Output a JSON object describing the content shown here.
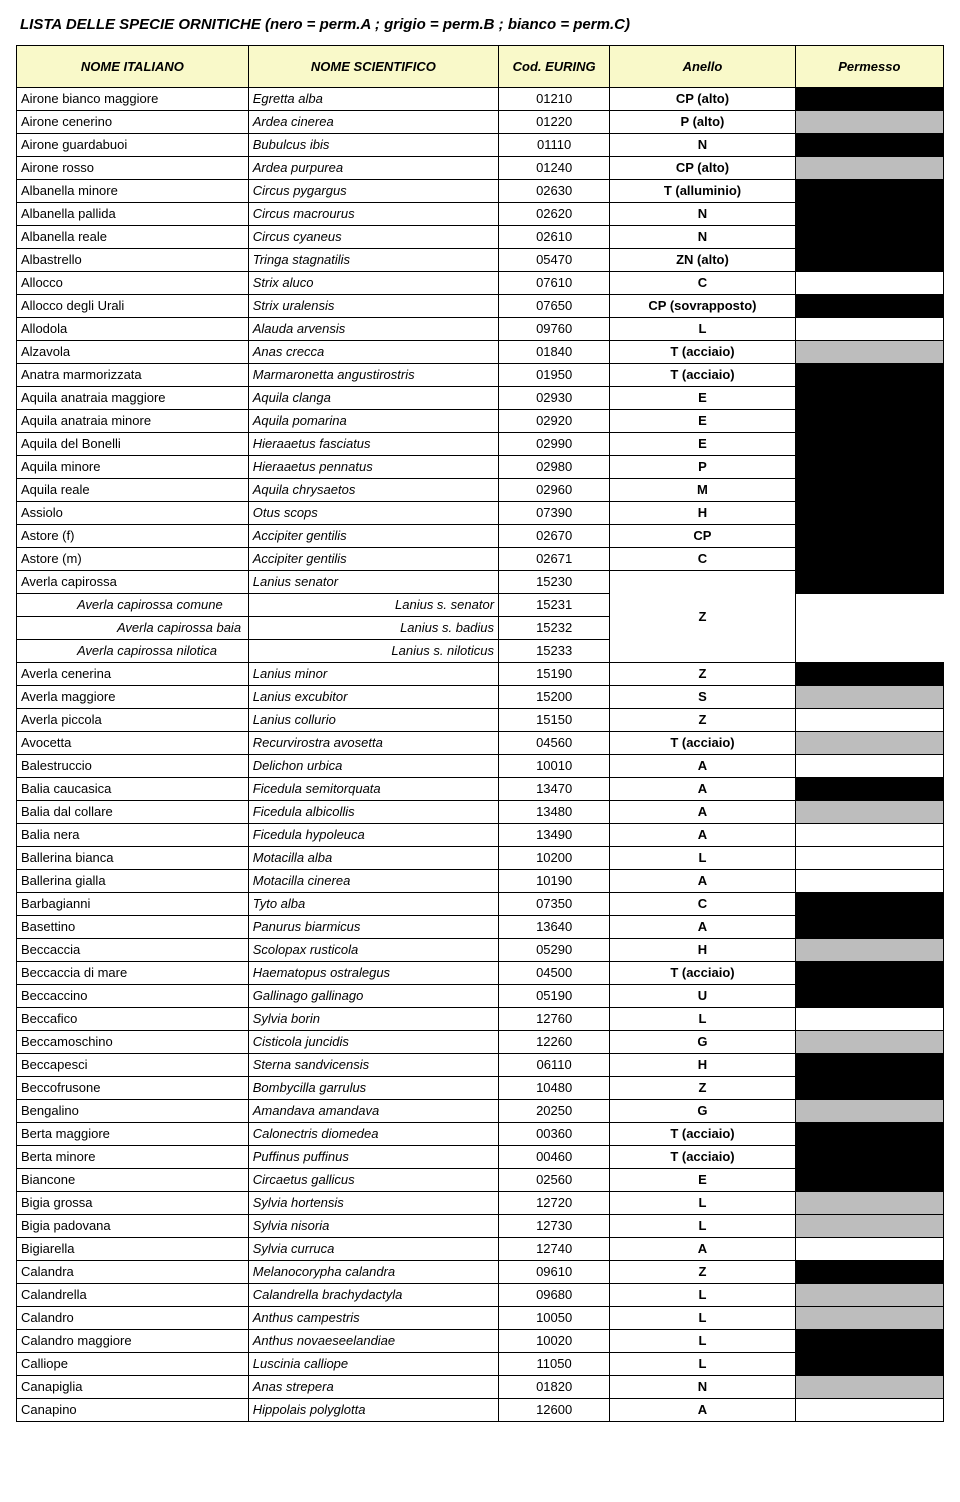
{
  "title": "LISTA DELLE SPECIE ORNITICHE  (nero = perm.A ; grigio = perm.B ; bianco = perm.C)",
  "headers": {
    "c1": "NOME ITALIANO",
    "c2": "NOME SCIENTIFICO",
    "c3": "Cod. EURING",
    "c4": "Anello",
    "c5": "Permesso"
  },
  "colors": {
    "black": "#000000",
    "gray": "#bdbdbd",
    "white": "#ffffff",
    "header_bg": "#f9f9c9"
  },
  "rows": [
    {
      "it": "Airone bianco maggiore",
      "sci": "Egretta alba",
      "cod": "01210",
      "an": "CP  (alto)",
      "perm": "black"
    },
    {
      "it": "Airone cenerino",
      "sci": "Ardea cinerea",
      "cod": "01220",
      "an": "P (alto)",
      "perm": "gray"
    },
    {
      "it": "Airone guardabuoi",
      "sci": "Bubulcus ibis",
      "cod": "01110",
      "an": "N",
      "perm": "black"
    },
    {
      "it": "Airone rosso",
      "sci": "Ardea purpurea",
      "cod": "01240",
      "an": "CP  (alto)",
      "perm": "gray"
    },
    {
      "it": "Albanella minore",
      "sci": "Circus pygargus",
      "cod": "02630",
      "an": "T (alluminio)",
      "perm": "black",
      "rowspan": 4
    },
    {
      "it": "Albanella pallida",
      "sci": "Circus macrourus",
      "cod": "02620",
      "an": "N"
    },
    {
      "it": "Albanella reale",
      "sci": "Circus cyaneus",
      "cod": "02610",
      "an": "N"
    },
    {
      "it": "Albastrello",
      "sci": "Tringa stagnatilis",
      "cod": "05470",
      "an": "ZN (alto)"
    },
    {
      "it": "Allocco",
      "sci": "Strix aluco",
      "cod": "07610",
      "an": "C",
      "perm": "white"
    },
    {
      "it": "Allocco degli Urali",
      "sci": "Strix uralensis",
      "cod": "07650",
      "an": "CP (sovrapposto)",
      "perm": "black"
    },
    {
      "it": "Allodola",
      "sci": "Alauda arvensis",
      "cod": "09760",
      "an": "L",
      "perm": "white"
    },
    {
      "it": "Alzavola",
      "sci": "Anas crecca",
      "cod": "01840",
      "an": "T (acciaio)",
      "perm": "gray"
    },
    {
      "it": "Anatra marmorizzata",
      "sci": "Marmaronetta angustirostris",
      "cod": "01950",
      "an": "T (acciaio)",
      "perm": "black",
      "rowspan": 10
    },
    {
      "it": "Aquila anatraia maggiore",
      "sci": "Aquila clanga",
      "cod": "02930",
      "an": "E"
    },
    {
      "it": "Aquila anatraia minore",
      "sci": "Aquila pomarina",
      "cod": "02920",
      "an": "E"
    },
    {
      "it": "Aquila del Bonelli",
      "sci": "Hieraaetus fasciatus",
      "cod": "02990",
      "an": "E"
    },
    {
      "it": "Aquila minore",
      "sci": "Hieraaetus pennatus",
      "cod": "02980",
      "an": "P"
    },
    {
      "it": "Aquila reale",
      "sci": "Aquila chrysaetos",
      "cod": "02960",
      "an": "M"
    },
    {
      "it": "Assiolo",
      "sci": "Otus scops",
      "cod": "07390",
      "an": "H"
    },
    {
      "it": "Astore     (f)",
      "sci": "Accipiter gentilis",
      "cod": "02670",
      "an": "CP"
    },
    {
      "it": "Astore     (m)",
      "sci": "Accipiter gentilis",
      "cod": "02671",
      "an": "C"
    },
    {
      "it": "Averla capirossa",
      "sci": "Lanius senator",
      "cod": "15230",
      "an": "",
      "an_rowspan": 4,
      "an_val": "Z"
    },
    {
      "it": "Averla capirossa comune",
      "sci": "Lanius s. senator",
      "cod": "15231",
      "indent": "indent1",
      "sci_right": true
    },
    {
      "it": "Averla capirossa baia",
      "sci": "Lanius s. badius",
      "cod": "15232",
      "indent": "indent2",
      "sci_right": true
    },
    {
      "it": "Averla capirossa nilotica",
      "sci": "Lanius s. niloticus",
      "cod": "15233",
      "indent": "indent1",
      "sci_right": true
    },
    {
      "it": "Averla cenerina",
      "sci": "Lanius minor",
      "cod": "15190",
      "an": "Z",
      "perm": "black"
    },
    {
      "it": "Averla maggiore",
      "sci": "Lanius excubitor",
      "cod": "15200",
      "an": "S",
      "perm": "gray"
    },
    {
      "it": "Averla piccola",
      "sci": "Lanius collurio",
      "cod": "15150",
      "an": "Z",
      "perm": "white"
    },
    {
      "it": "Avocetta",
      "sci": "Recurvirostra avosetta",
      "cod": "04560",
      "an": "T (acciaio)",
      "perm": "gray"
    },
    {
      "it": "Balestruccio",
      "sci": "Delichon urbica",
      "cod": "10010",
      "an": "A",
      "perm": "white"
    },
    {
      "it": "Balia caucasica",
      "sci": "Ficedula semitorquata",
      "cod": "13470",
      "an": "A",
      "perm": "black"
    },
    {
      "it": "Balia dal collare",
      "sci": "Ficedula albicollis",
      "cod": "13480",
      "an": "A",
      "perm": "gray"
    },
    {
      "it": "Balia nera",
      "sci": "Ficedula hypoleuca",
      "cod": "13490",
      "an": "A",
      "perm": "white"
    },
    {
      "it": "Ballerina bianca",
      "sci": "Motacilla alba",
      "cod": "10200",
      "an": "L",
      "perm": "white"
    },
    {
      "it": "Ballerina gialla",
      "sci": "Motacilla cinerea",
      "cod": "10190",
      "an": "A",
      "perm": "white"
    },
    {
      "it": "Barbagianni",
      "sci": "Tyto alba",
      "cod": "07350",
      "an": "C",
      "perm": "black",
      "rowspan": 2
    },
    {
      "it": "Basettino",
      "sci": "Panurus biarmicus",
      "cod": "13640",
      "an": "A"
    },
    {
      "it": "Beccaccia",
      "sci": "Scolopax rusticola",
      "cod": "05290",
      "an": "H",
      "perm": "gray"
    },
    {
      "it": "Beccaccia di mare",
      "sci": "Haematopus ostralegus",
      "cod": "04500",
      "an": "T (acciaio)",
      "perm": "black",
      "rowspan": 2
    },
    {
      "it": "Beccaccino",
      "sci": "Gallinago gallinago",
      "cod": "05190",
      "an": "U"
    },
    {
      "it": "Beccafico",
      "sci": "Sylvia borin",
      "cod": "12760",
      "an": "L",
      "perm": "white"
    },
    {
      "it": "Beccamoschino",
      "sci": "Cisticola juncidis",
      "cod": "12260",
      "an": "G",
      "perm": "gray"
    },
    {
      "it": "Beccapesci",
      "sci": "Sterna sandvicensis",
      "cod": "06110",
      "an": "H",
      "perm": "black"
    },
    {
      "it": "Beccofrusone",
      "sci": "Bombycilla garrulus",
      "cod": "10480",
      "an": "Z",
      "perm": "black"
    },
    {
      "it": "Bengalino",
      "sci": "Amandava amandava",
      "cod": "20250",
      "an": "G",
      "perm": "gray"
    },
    {
      "it": "Berta maggiore",
      "sci": "Calonectris diomedea",
      "cod": "00360",
      "an": "T (acciaio)",
      "perm": "black",
      "rowspan": 3
    },
    {
      "it": "Berta minore",
      "sci": "Puffinus puffinus",
      "cod": "00460",
      "an": "T (acciaio)"
    },
    {
      "it": "Biancone",
      "sci": "Circaetus gallicus",
      "cod": "02560",
      "an": "E"
    },
    {
      "it": "Bigia grossa",
      "sci": "Sylvia hortensis",
      "cod": "12720",
      "an": "L",
      "perm": "gray"
    },
    {
      "it": "Bigia padovana",
      "sci": "Sylvia nisoria",
      "cod": "12730",
      "an": "L",
      "perm": "gray"
    },
    {
      "it": "Bigiarella",
      "sci": "Sylvia curruca",
      "cod": "12740",
      "an": "A",
      "perm": "white"
    },
    {
      "it": "Calandra",
      "sci": "Melanocorypha calandra",
      "cod": "09610",
      "an": "Z",
      "perm": "black"
    },
    {
      "it": "Calandrella",
      "sci": "Calandrella brachydactyla",
      "cod": "09680",
      "an": "L",
      "perm": "gray"
    },
    {
      "it": "Calandro",
      "sci": "Anthus campestris",
      "cod": "10050",
      "an": "L",
      "perm": "gray"
    },
    {
      "it": "Calandro maggiore",
      "sci": "Anthus novaeseelandiae",
      "cod": "10020",
      "an": "L",
      "perm": "black",
      "rowspan": 2
    },
    {
      "it": "Calliope",
      "sci": "Luscinia calliope",
      "cod": "11050",
      "an": "L"
    },
    {
      "it": "Canapiglia",
      "sci": "Anas strepera",
      "cod": "01820",
      "an": "N",
      "perm": "gray"
    },
    {
      "it": "Canapino",
      "sci": "Hippolais polyglotta",
      "cod": "12600",
      "an": "A",
      "perm": "white"
    }
  ]
}
